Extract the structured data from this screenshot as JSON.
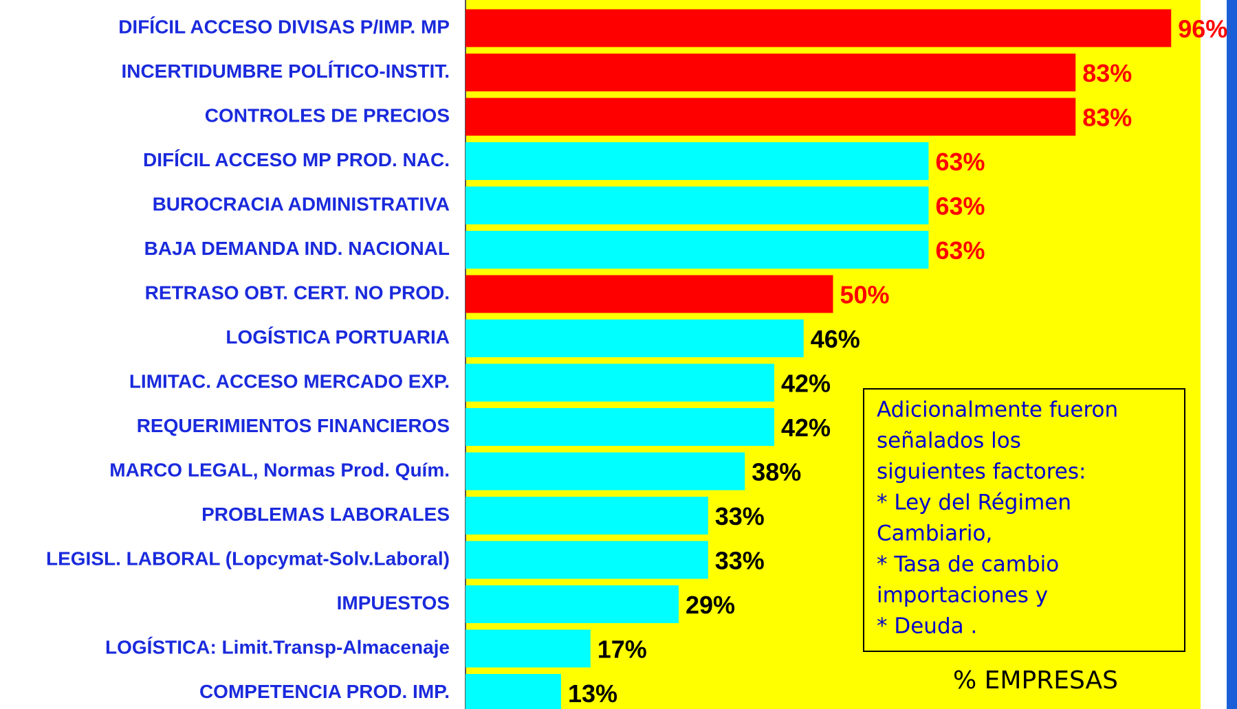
{
  "chart_data": {
    "type": "barh",
    "categories": [
      "DIFÍCIL ACCESO DIVISAS P/IMP. MP",
      "INCERTIDUMBRE POLÍTICO-INSTIT.",
      "CONTROLES DE PRECIOS",
      "DIFÍCIL ACCESO MP PROD. NAC.",
      "BUROCRACIA ADMINISTRATIVA",
      "BAJA DEMANDA IND. NACIONAL",
      "RETRASO OBT. CERT. NO PROD.",
      "LOGÍSTICA PORTUARIA",
      "LIMITAC. ACCESO MERCADO EXP.",
      "REQUERIMIENTOS FINANCIEROS",
      "MARCO LEGAL, Normas Prod. Quím.",
      "PROBLEMAS LABORALES",
      "LEGISL. LABORAL (Lopcymat-Solv.Laboral)",
      "IMPUESTOS",
      "LOGÍSTICA: Limit.Transp-Almacenaje",
      "COMPETENCIA PROD. IMP."
    ],
    "values": [
      96,
      83,
      83,
      63,
      63,
      63,
      50,
      46,
      42,
      42,
      38,
      33,
      33,
      29,
      17,
      13
    ],
    "value_labels": [
      "96%",
      "83%",
      "83%",
      "63%",
      "63%",
      "63%",
      "50%",
      "46%",
      "42%",
      "42%",
      "38%",
      "33%",
      "33%",
      "29%",
      "17%",
      "13%"
    ],
    "colors": [
      "#ff0000",
      "#ff0000",
      "#ff0000",
      "#00ffff",
      "#00ffff",
      "#00ffff",
      "#ff0000",
      "#00ffff",
      "#00ffff",
      "#00ffff",
      "#00ffff",
      "#00ffff",
      "#00ffff",
      "#00ffff",
      "#00ffff",
      "#00ffff"
    ],
    "label_colors": [
      "#ff0000",
      "#ff0000",
      "#ff0000",
      "#ff0000",
      "#ff0000",
      "#ff0000",
      "#ff0000",
      "#000000",
      "#000000",
      "#000000",
      "#000000",
      "#000000",
      "#000000",
      "#000000",
      "#000000",
      "#000000"
    ],
    "xlim": [
      0,
      100
    ],
    "xlabel": "% EMPRESAS",
    "annotation": [
      "Adicionalmente fueron",
      "señalados los",
      "siguientes factores:",
      "* Ley del Régimen",
      "Cambiario,",
      "* Tasa de cambio",
      "importaciones y",
      "* Deuda ."
    ]
  }
}
